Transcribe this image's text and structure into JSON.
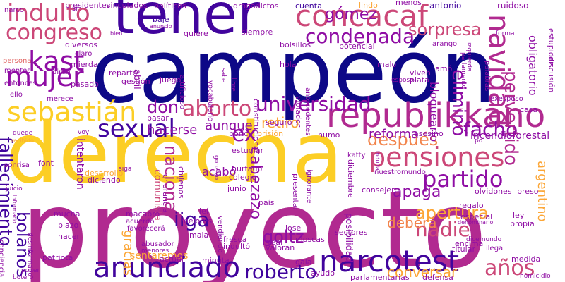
{
  "palette": {
    "navy": "#0d0887",
    "indigo": "#41049d",
    "purple": "#6a00a8",
    "violet": "#8f0da4",
    "magenta": "#b12a90",
    "rose": "#cc4778",
    "salmon": "#e16462",
    "orange": "#f2844b",
    "amber": "#fca636",
    "yellow": "#fcce25"
  },
  "words": [
    {
      "text": "proyecto",
      "color": "magenta"
    },
    {
      "text": "campeón",
      "color": "navy"
    },
    {
      "text": "derecha",
      "color": "yellow"
    },
    {
      "text": "tener",
      "color": "indigo"
    },
    {
      "text": "republikkano",
      "color": "magenta"
    },
    {
      "text": "anunciado",
      "color": "indigo"
    },
    {
      "text": "narcotest",
      "color": "indigo"
    },
    {
      "text": "concacaf",
      "color": "rose"
    },
    {
      "text": "sebastián",
      "color": "yellow"
    },
    {
      "text": "pensiones",
      "color": "rose"
    },
    {
      "text": "indulto",
      "color": "rose"
    },
    {
      "text": "congreso",
      "color": "rose"
    },
    {
      "text": "mujer",
      "color": "violet"
    },
    {
      "text": "kast",
      "color": "violet"
    },
    {
      "text": "navidad",
      "color": "magenta"
    },
    {
      "text": "sexual",
      "color": "indigo"
    },
    {
      "text": "aborto",
      "color": "rose"
    },
    {
      "text": "partido",
      "color": "violet"
    },
    {
      "text": "condenada",
      "color": "violet"
    },
    {
      "text": "gómez",
      "color": "violet"
    },
    {
      "text": "sorpresa",
      "color": "rose"
    },
    {
      "text": "universidad",
      "color": "violet"
    },
    {
      "text": "don",
      "color": "violet"
    },
    {
      "text": "ex",
      "color": "violet"
    },
    {
      "text": "después",
      "color": "orange"
    },
    {
      "text": "facho",
      "color": "violet"
    },
    {
      "text": "liga",
      "color": "indigo"
    },
    {
      "text": "roberto",
      "color": "indigo"
    },
    {
      "text": "años",
      "color": "rose"
    },
    {
      "text": "nadie",
      "color": "rose"
    },
    {
      "text": "apertura",
      "color": "amber"
    },
    {
      "text": "goltz",
      "color": "violet"
    },
    {
      "text": "bolaños",
      "color": "indigo"
    },
    {
      "text": "cabezazo",
      "color": "violet"
    },
    {
      "text": "eliminó",
      "color": "violet"
    },
    {
      "text": "pervertido",
      "color": "magenta"
    },
    {
      "text": "fallecimiento",
      "color": "indigo"
    },
    {
      "text": "nacional",
      "color": "magenta"
    },
    {
      "text": "apaga",
      "color": "violet"
    },
    {
      "text": "retiro",
      "color": "amber"
    },
    {
      "text": "hacerse",
      "color": "violet"
    },
    {
      "text": "aunque",
      "color": "violet"
    },
    {
      "text": "reforma",
      "color": "violet"
    },
    {
      "text": "incendioforestal",
      "color": "violet"
    },
    {
      "text": "argentino",
      "color": "amber"
    },
    {
      "text": "deberá",
      "color": "orange"
    },
    {
      "text": "conversar",
      "color": "amber"
    },
    {
      "text": "gracias",
      "color": "amber"
    },
    {
      "text": "sentaremos",
      "color": "amber"
    },
    {
      "text": "acabó",
      "color": "violet"
    },
    {
      "text": "bloquearlo",
      "color": "violet"
    },
    {
      "text": "intentaron",
      "color": "violet"
    },
    {
      "text": "comunista",
      "color": "rose"
    },
    {
      "text": "obligatorio",
      "color": "violet"
    },
    {
      "text": "antonio",
      "color": "indigo"
    },
    {
      "text": "ruidoso",
      "color": "violet"
    },
    {
      "text": "cuenta",
      "color": "indigo"
    },
    {
      "text": "menos",
      "color": "violet"
    },
    {
      "text": "drogadictos",
      "color": "violet"
    },
    {
      "text": "políticos",
      "color": "violet"
    },
    {
      "text": "vinculados",
      "color": "violet"
    },
    {
      "text": "presidentes",
      "color": "violet"
    },
    {
      "text": "narco",
      "color": "violet"
    },
    {
      "text": "sr",
      "color": "violet"
    },
    {
      "text": "baje",
      "color": "indigo"
    },
    {
      "text": "anuncio",
      "color": "violet"
    },
    {
      "text": "bien",
      "color": "violet"
    },
    {
      "text": "quiere",
      "color": "violet"
    },
    {
      "text": "siempre",
      "color": "violet"
    },
    {
      "text": "bolsillos",
      "color": "violet"
    },
    {
      "text": "potencial",
      "color": "violet"
    },
    {
      "text": "lindo",
      "color": "amber"
    },
    {
      "text": "persona",
      "color": "salmon"
    },
    {
      "text": "diversos",
      "color": "violet"
    },
    {
      "text": "mentes",
      "color": "violet"
    },
    {
      "text": "entonces",
      "color": "violet"
    },
    {
      "text": "dirán",
      "color": "violet"
    },
    {
      "text": "mierda",
      "color": "violet"
    },
    {
      "text": "claro",
      "color": "violet"
    },
    {
      "text": "reparto",
      "color": "violet"
    },
    {
      "text": "gestión",
      "color": "violet"
    },
    {
      "text": "pasado",
      "color": "violet"
    },
    {
      "text": "ello",
      "color": "violet"
    },
    {
      "text": "merece",
      "color": "violet"
    },
    {
      "text": "juego",
      "color": "violet"
    },
    {
      "text": "abril",
      "color": "violet"
    },
    {
      "text": "hola",
      "color": "violet"
    },
    {
      "text": "malo",
      "color": "violet"
    },
    {
      "text": "viven",
      "color": "violet"
    },
    {
      "text": "plata",
      "color": "violet"
    },
    {
      "text": "esposo",
      "color": "violet"
    },
    {
      "text": "llamó",
      "color": "violet"
    },
    {
      "text": "palabras",
      "color": "violet"
    },
    {
      "text": "casa",
      "color": "violet"
    },
    {
      "text": "exesposo",
      "color": "violet"
    },
    {
      "text": "discusión",
      "color": "violet"
    },
    {
      "text": "estupidez",
      "color": "violet"
    },
    {
      "text": "forma",
      "color": "violet"
    },
    {
      "text": "arango",
      "color": "violet"
    },
    {
      "text": "quede",
      "color": "violet"
    },
    {
      "text": "recibido",
      "color": "amber"
    },
    {
      "text": "voy",
      "color": "violet"
    },
    {
      "text": "pasar",
      "color": "violet"
    },
    {
      "text": "bóric",
      "color": "violet"
    },
    {
      "text": "prisión",
      "color": "amber"
    },
    {
      "text": "seguro",
      "color": "violet"
    },
    {
      "text": "humo",
      "color": "violet"
    },
    {
      "text": "asesino",
      "color": "violet"
    },
    {
      "text": "po",
      "color": "violet"
    },
    {
      "text": "katty",
      "color": "violet"
    },
    {
      "text": "siga",
      "color": "violet"
    },
    {
      "text": "desarrollo",
      "color": "amber"
    },
    {
      "text": "diciendo",
      "color": "violet"
    },
    {
      "text": "font",
      "color": "violet"
    },
    {
      "text": "sonrisa",
      "color": "violet"
    },
    {
      "text": "informado",
      "color": "violet"
    },
    {
      "text": "juicio",
      "color": "violet"
    },
    {
      "text": "mucha",
      "color": "violet"
    },
    {
      "text": "plazo",
      "color": "violet"
    },
    {
      "text": "hacer",
      "color": "violet"
    },
    {
      "text": "conciencia",
      "color": "violet"
    },
    {
      "text": "desinformado",
      "color": "violet"
    },
    {
      "text": "patriota",
      "color": "violet"
    },
    {
      "text": "poder",
      "color": "violet"
    },
    {
      "text": "botero",
      "color": "violet"
    },
    {
      "text": "macabro",
      "color": "violet"
    },
    {
      "text": "acuerdo",
      "color": "violet"
    },
    {
      "text": "favorecerá",
      "color": "violet"
    },
    {
      "text": "abusador",
      "color": "violet"
    },
    {
      "text": "menores",
      "color": "violet"
    },
    {
      "text": "actual",
      "color": "violet"
    },
    {
      "text": "minuta",
      "color": "violet"
    },
    {
      "text": "indultó",
      "color": "violet"
    },
    {
      "text": "fresca",
      "color": "violet"
    },
    {
      "text": "mala",
      "color": "violet"
    },
    {
      "text": "mejores",
      "color": "violet"
    },
    {
      "text": "leí",
      "color": "violet"
    },
    {
      "text": "país",
      "color": "violet"
    },
    {
      "text": "junio",
      "color": "violet"
    },
    {
      "text": "vendiendo",
      "color": "violet"
    },
    {
      "text": "irreal",
      "color": "violet"
    },
    {
      "text": "valoran",
      "color": "violet"
    },
    {
      "text": "moscas",
      "color": "violet"
    },
    {
      "text": "sectores",
      "color": "violet"
    },
    {
      "text": "jose",
      "color": "violet"
    },
    {
      "text": "gala",
      "color": "violet"
    },
    {
      "text": "parlamentarias",
      "color": "violet"
    },
    {
      "text": "defensa",
      "color": "violet"
    },
    {
      "text": "ayudo",
      "color": "violet"
    },
    {
      "text": "medida",
      "color": "violet"
    },
    {
      "text": "homicidio",
      "color": "violet"
    },
    {
      "text": "titular",
      "color": "violet"
    },
    {
      "text": "encima",
      "color": "violet"
    },
    {
      "text": "dicemundo",
      "color": "violet"
    },
    {
      "text": "ilegal",
      "color": "violet"
    },
    {
      "text": "especial",
      "color": "violet"
    },
    {
      "text": "denominarlo",
      "color": "violet"
    },
    {
      "text": "regalo",
      "color": "violet"
    },
    {
      "text": "ley",
      "color": "violet"
    },
    {
      "text": "propia",
      "color": "violet"
    },
    {
      "text": "olvidones",
      "color": "violet"
    },
    {
      "text": "preso",
      "color": "violet"
    },
    {
      "text": "consejero",
      "color": "violet"
    },
    {
      "text": "nuestromundo",
      "color": "violet"
    },
    {
      "text": "diciembre",
      "color": "violet"
    },
    {
      "text": "indulta",
      "color": "violet"
    },
    {
      "text": "presentar",
      "color": "violet"
    },
    {
      "text": "ignorante",
      "color": "violet"
    },
    {
      "text": "posibilidad",
      "color": "violet"
    },
    {
      "text": "hurtado",
      "color": "violet"
    },
    {
      "text": "colegio",
      "color": "violet"
    },
    {
      "text": "gonzalo",
      "color": "violet"
    },
    {
      "text": "estudiar",
      "color": "violet"
    },
    {
      "text": "chilenos",
      "color": "violet"
    },
    {
      "text": "ignorancia",
      "color": "violet"
    },
    {
      "text": "constitucional",
      "color": "violet"
    },
    {
      "text": "artificioso",
      "color": "violet"
    },
    {
      "text": "vocabulario",
      "color": "violet"
    },
    {
      "text": "violador",
      "color": "violet"
    },
    {
      "text": "antecedentes",
      "color": "violet"
    },
    {
      "text": "libre",
      "color": "violet"
    },
    {
      "text": "sabe",
      "color": "violet"
    },
    {
      "text": "parlamento",
      "color": "violet"
    },
    {
      "text": "izquierda",
      "color": "violet"
    }
  ]
}
